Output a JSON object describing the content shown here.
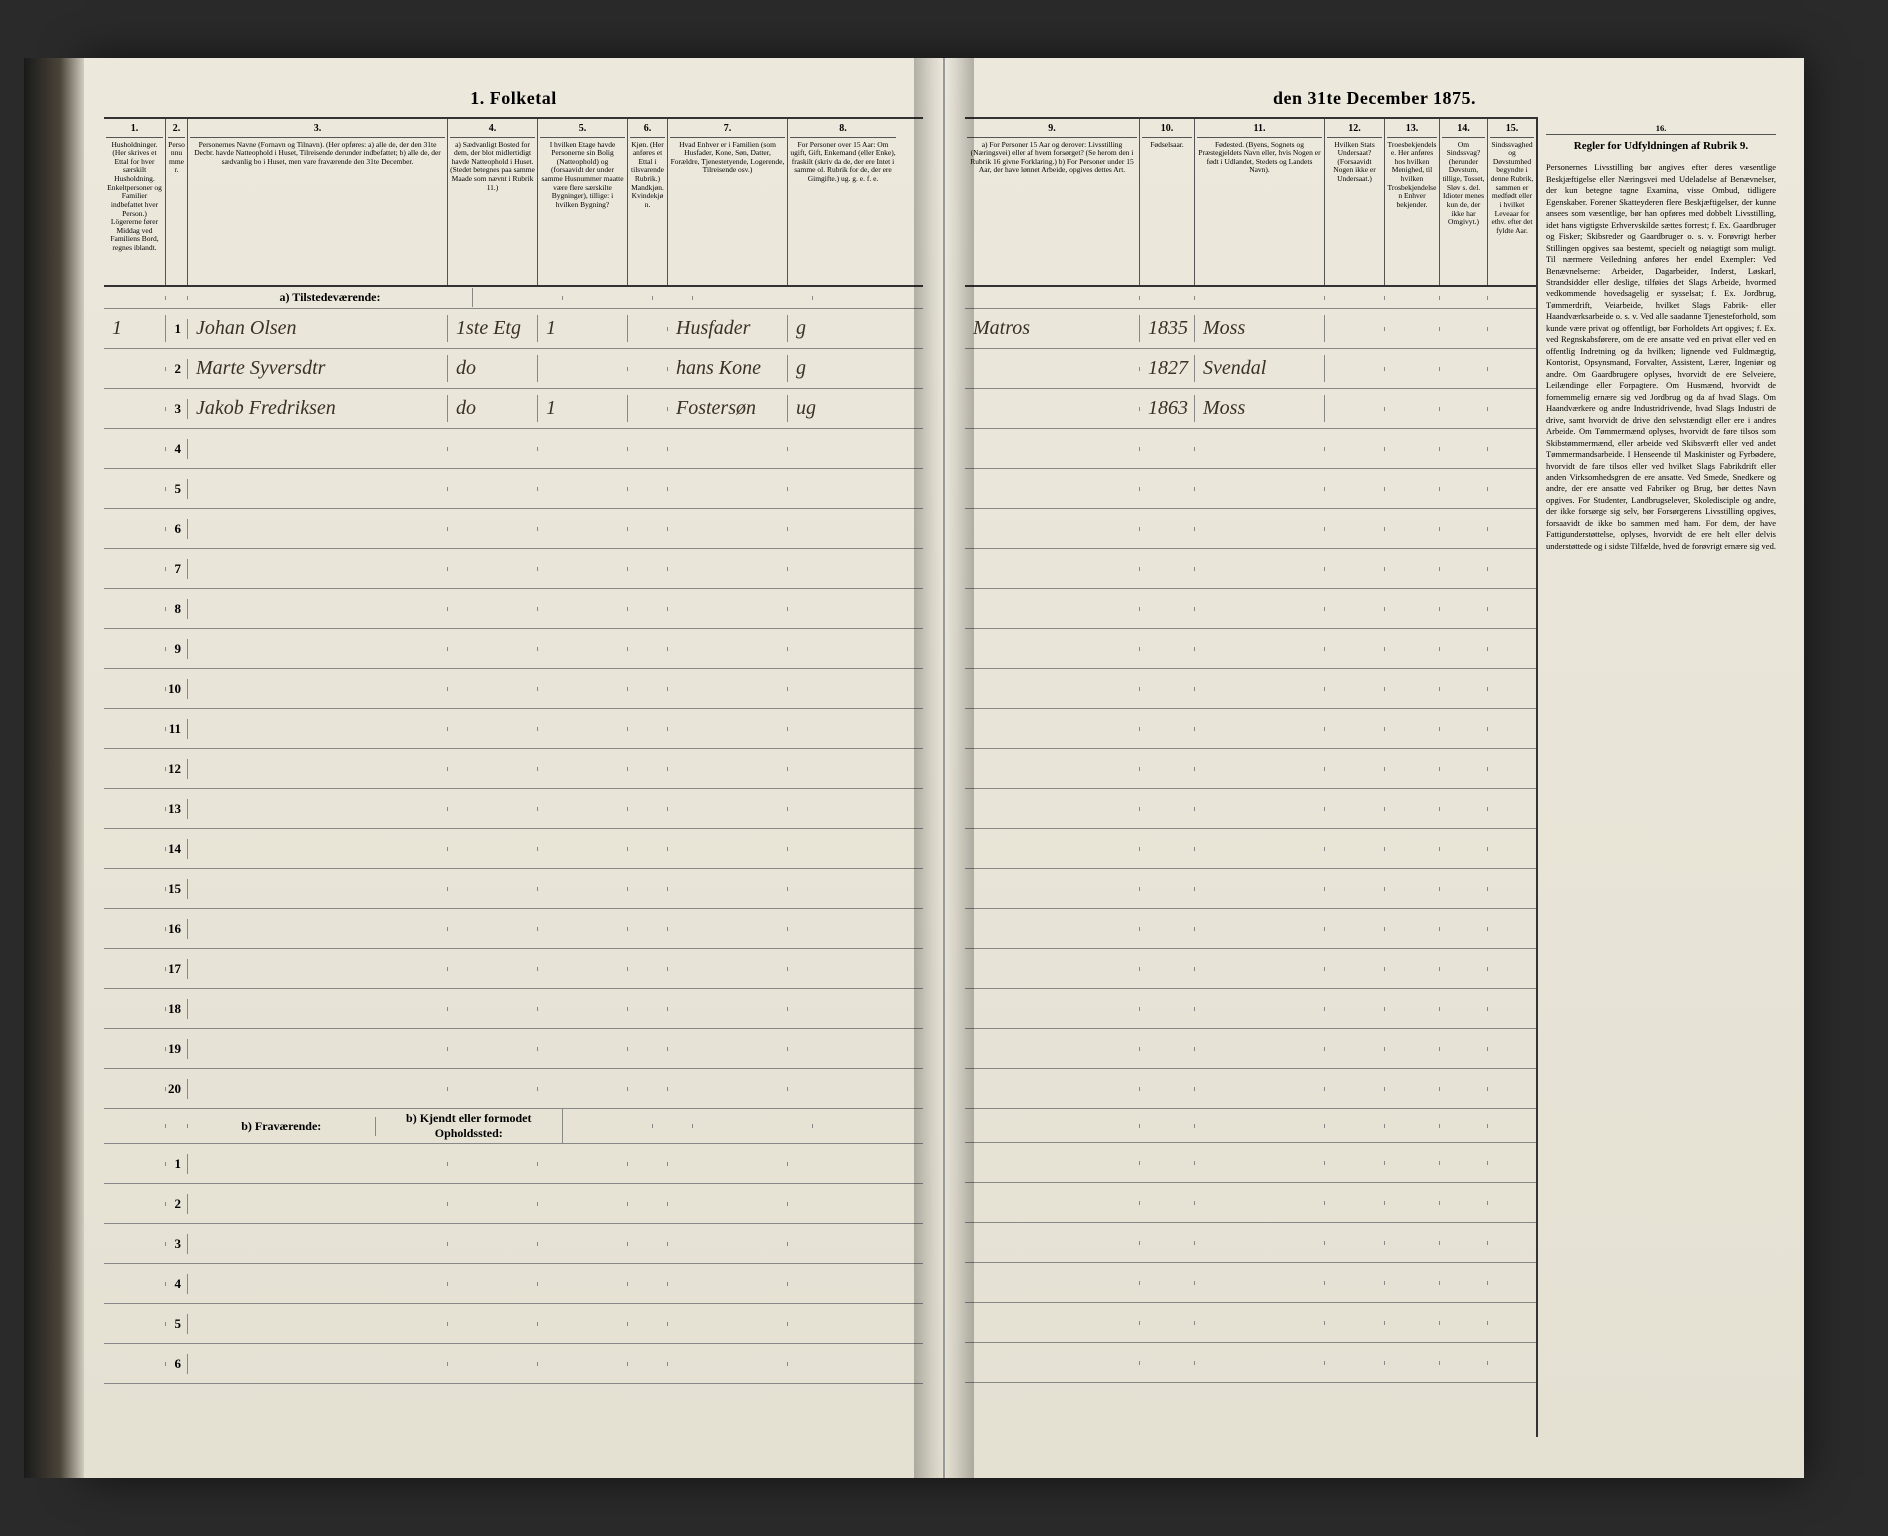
{
  "document": {
    "title_left": "1. Folketal",
    "title_right": "den 31te December 1875.",
    "title_full": "1. Folketallet den 31te December 1875."
  },
  "columns_left": [
    {
      "num": "1.",
      "txt": "Husholdninger. (Her skrives et Ettal for hver særskilt Husholdning. Enkeltpersoner og Familier indbefattet hver Person.) Lögererne fører Middag ved Familiens Bord, regnes iblandt."
    },
    {
      "num": "2.",
      "txt": "Personnummer."
    },
    {
      "num": "3.",
      "txt": "Personernes Navne (Fornavn og Tilnavn). (Her opføres: a) alle de, der den 31te Decbr. havde Natteophold i Huset, Tilreisende derunder indbefattet; b) alle de, der sædvanlig bo i Huset, men vare fraværende den 31te December."
    },
    {
      "num": "4.",
      "txt": "a) Sædvanligt Bosted for dem, der blot midlertidigt havde Natteophold i Huset. (Stedet betegnes paa samme Maade som nævnt i Rubrik 11.)"
    },
    {
      "num": "5.",
      "txt": "I hvilken Etage havde Personerne sin Bolig (Natteophold) og (forsaavidt der under samme Husnummer maatte være flere særskilte Bygninger), tillige: i hvilken Bygning?"
    },
    {
      "num": "6.",
      "txt": "Kjøn. (Her anføres et Ettal i tilsvarende Rubrik.) Mandkjøn. Kvindekjøn."
    },
    {
      "num": "7.",
      "txt": "Hvad Enhver er i Familien (som Husfader, Kone, Søn, Datter, Forældre, Tjenestetyende, Logerende, Tilreisende osv.)"
    },
    {
      "num": "8.",
      "txt": "For Personer over 15 Aar: Om ugift, Gift, Enkemand (eller Enke), fraskilt (skriv da de, der ere Intet i samme ol. Rubrik for de, der ere Gimgifte.) ug. g. e. f. e."
    }
  ],
  "columns_right": [
    {
      "num": "9.",
      "txt": "a) For Personer 15 Aar og derover: Livsstilling (Næringsvei) eller af hvem forsørget? (Se herom den i Rubrik 16 givne Forklaring.) b) For Personer under 15 Aar, der have lønnet Arbeide, opgives dettes Art."
    },
    {
      "num": "10.",
      "txt": "Fødselsaar."
    },
    {
      "num": "11.",
      "txt": "Fødested. (Byens, Sognets og Præstegjeldets Navn eller, hvis Nogen er født i Udlandet, Stedets og Landets Navn)."
    },
    {
      "num": "12.",
      "txt": "Hvilken Stats Undersaat? (Forsaavidt Nogen ikke er Undersaat.)"
    },
    {
      "num": "13.",
      "txt": "Troesbekjendelse. Her anføres hos hvilken Menighed, til hvilken Trosbekjendelsen Enhver bekjender."
    },
    {
      "num": "14.",
      "txt": "Om Sindssvag? (herunder Døvstum, tillige, Tosset, Sløv s. del. Idioter menes kun de, der ikke har Omgivyt.)"
    },
    {
      "num": "15.",
      "txt": "Sindssvaghedog Døvstumhed begyndte i denne Rubrik, sammen er medfødt eller i hvilket Leveaar for ethv. efter det fyldte Aar."
    }
  ],
  "rules": {
    "col_num": "16.",
    "title": "Regler for Udfyldningen af Rubrik 9.",
    "body": "Personernes Livsstilling bør angives efter deres væsentlige Beskjæftigelse eller Næringsvei med Udeladelse af Benævnelser, der kun betegne tagne Examina, visse Ombud, tidligere Egenskaber. Forener Skatteyderen flere Beskjæftigelser, der kunne ansees som væsentlige, bør han opføres med dobbelt Livsstilling, idet hans vigtigste Erhvervskilde sættes forrest; f. Ex. Gaardbruger og Fisker; Skibsreder og Gaardbruger o. s. v. Forøvrigt herber Stillingen opgives saa bestemt, specielt og nøiagtigt som muligt. Til nærmere Veiledning anføres her endel Exempler: Ved Benævnelserne: Arbeider, Dagarbeider, Inderst, Løskarl, Strandsidder eller deslige, tilføies det Slags Arbeide, hvormed vedkommende hovedsagelig er sysselsat; f. Ex. Jordbrug, Tømmerdrift, Veiarbeide, hvilket Slags Fabrik- eller Haandværksarbeide o. s. v. Ved alle saadanne Tjenesteforhold, som kunde være privat og offentligt, bør Forholdets Art opgives; f. Ex. ved Regnskabsførere, om de ere ansatte ved en privat eller ved en offentlig Indretning og da hvilken; lignende ved Fuldmægtig, Kontorist, Opsynsmand, Forvalter, Assistent, Lærer, Ingeniør og andre. Om Gaardbrugere oplyses, hvorvidt de ere Selveiere, Leilændinge eller Forpagtere. Om Husmænd, hvorvidt de fornemmelig ernære sig ved Jordbrug og da af hvad Slags. Om Haandværkere og andre Industridrivende, hvad Slags Industri de drive, samt hvorvidt de drive den selvstændigt eller ere i andres Arbeide. Om Tømmermænd oplyses, hvorvidt de føre tilsos som Skibstømmermænd, eller arbeide ved Skibsværft eller ved andet Tømmermandsarbeide. I Henseende til Maskinister og Fyrbødere, hvorvidt de fare tilsos eller ved hvilket Slags Fabrikdrift eller anden Virksomhedsgren de ere ansatte. Ved Smede, Snedkere og andre, der ere ansatte ved Fabriker og Brug, bør dettes Navn opgives. For Studenter, Landbrugselever, Skoledisciple og andre, der ikke forsørge sig selv, bør Forsørgerens Livsstilling opgives, forsaavidt de ikke bo sammen med ham. For dem, der have Fattigunderstøttelse, oplyses, hvorvidt de ere helt eller delvis understøttede og i sidste Tilfælde, hved de forøvrigt ernære sig ved."
  },
  "section_labels": {
    "present": "a) Tilstedeværende:",
    "absent": "b) Fraværende:",
    "absent_c4": "b) Kjendt eller formodet Opholdssted:"
  },
  "entries": [
    {
      "row": 1,
      "household": "1",
      "pno": "1",
      "name": "Johan Olsen",
      "c4": "1ste Etg",
      "c5": "1",
      "c7": "Husfader",
      "c8": "g",
      "c9": "Matros",
      "c10": "1835",
      "c11": "Moss"
    },
    {
      "row": 2,
      "household": "",
      "pno": "2",
      "name": "Marte Syversdtr",
      "c4": "do",
      "c5": "",
      "c7": "hans Kone",
      "c8": "g",
      "c9": "",
      "c10": "1827",
      "c11": "Svendal"
    },
    {
      "row": 3,
      "household": "",
      "pno": "3",
      "name": "Jakob Fredriksen",
      "c4": "do",
      "c5": "1",
      "c7": "Fostersøn",
      "c8": "ug",
      "c9": "",
      "c10": "1863",
      "c11": "Moss"
    }
  ],
  "blank_rows_present": [
    4,
    5,
    6,
    7,
    8,
    9,
    10,
    11,
    12,
    13,
    14,
    15,
    16,
    17,
    18,
    19,
    20
  ],
  "blank_rows_absent": [
    1,
    2,
    3,
    4,
    5,
    6
  ],
  "colors": {
    "paper": "#e8e4d8",
    "ink": "#2a2218",
    "line": "#555",
    "handwriting": "#3a3028",
    "background": "#2a2a2a"
  }
}
